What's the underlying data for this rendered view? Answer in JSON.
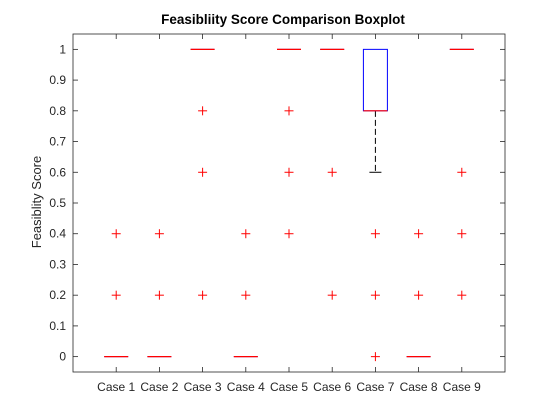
{
  "chart_data": {
    "type": "boxplot",
    "title": "Feasibliity Score Comparison Boxplot",
    "xlabel": "",
    "ylabel": "Feasiblity Score",
    "ylim": [
      -0.05,
      1.05
    ],
    "yticks": [
      0,
      0.1,
      0.2,
      0.3,
      0.4,
      0.5,
      0.6,
      0.7,
      0.8,
      0.9,
      1
    ],
    "ytick_labels": [
      "0",
      "0.1",
      "0.2",
      "0.3",
      "0.4",
      "0.5",
      "0.6",
      "0.7",
      "0.8",
      "0.9",
      "1"
    ],
    "categories": [
      "Case 1",
      "Case 2",
      "Case 3",
      "Case 4",
      "Case 5",
      "Case 6",
      "Case 7",
      "Case 8",
      "Case 9"
    ],
    "boxes": [
      {
        "q1": 0,
        "median": 0,
        "q3": 0,
        "whisker_low": 0,
        "whisker_high": 0,
        "outliers": [
          0.2,
          0.4
        ]
      },
      {
        "q1": 0,
        "median": 0,
        "q3": 0,
        "whisker_low": 0,
        "whisker_high": 0,
        "outliers": [
          0.2,
          0.4
        ]
      },
      {
        "q1": 1,
        "median": 1,
        "q3": 1,
        "whisker_low": 1,
        "whisker_high": 1,
        "outliers": [
          0.2,
          0.6,
          0.8
        ]
      },
      {
        "q1": 0,
        "median": 0,
        "q3": 0,
        "whisker_low": 0,
        "whisker_high": 0,
        "outliers": [
          0.2,
          0.4
        ]
      },
      {
        "q1": 1,
        "median": 1,
        "q3": 1,
        "whisker_low": 1,
        "whisker_high": 1,
        "outliers": [
          0.4,
          0.6,
          0.8
        ]
      },
      {
        "q1": 1,
        "median": 1,
        "q3": 1,
        "whisker_low": 1,
        "whisker_high": 1,
        "outliers": [
          0.2,
          0.6
        ]
      },
      {
        "q1": 0.8,
        "median": 0.8,
        "q3": 1,
        "whisker_low": 0.6,
        "whisker_high": 1,
        "outliers": [
          0,
          0.2,
          0.4
        ]
      },
      {
        "q1": 0,
        "median": 0,
        "q3": 0,
        "whisker_low": 0,
        "whisker_high": 0,
        "outliers": [
          0.2,
          0.4
        ]
      },
      {
        "q1": 1,
        "median": 1,
        "q3": 1,
        "whisker_low": 1,
        "whisker_high": 1,
        "outliers": [
          0.2,
          0.4,
          0.6
        ]
      }
    ],
    "grid": false,
    "colors": {
      "box": "#0000ff",
      "median": "#ff0000",
      "outlier": "#ff0000",
      "whisker": "#000000",
      "axis": "#262626"
    }
  }
}
